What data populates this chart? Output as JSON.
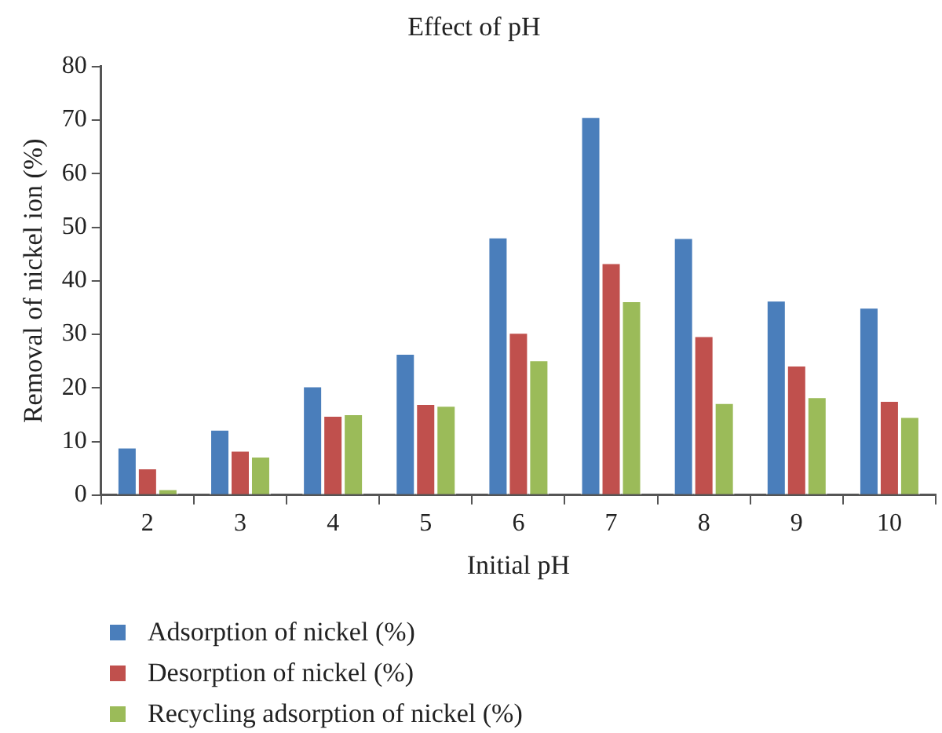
{
  "chart_data": {
    "type": "bar",
    "title": "Effect of pH",
    "xlabel": "Initial pH",
    "ylabel": "Removal of nickel ion (%)",
    "categories": [
      "2",
      "3",
      "4",
      "5",
      "6",
      "7",
      "8",
      "9",
      "10"
    ],
    "series": [
      {
        "name": "Adsorption of nickel (%)",
        "color": "#4a7ebb",
        "values": [
          9.0,
          12.3,
          20.4,
          26.5,
          48.2,
          70.7,
          48.1,
          36.4,
          35.1
        ]
      },
      {
        "name": "Desorption of nickel (%)",
        "color": "#c0504d",
        "values": [
          5.1,
          8.4,
          14.9,
          17.1,
          30.4,
          43.4,
          29.8,
          24.3,
          17.7
        ]
      },
      {
        "name": "Recycling adsorption of nickel (%)",
        "color": "#9bbb59",
        "values": [
          1.2,
          7.3,
          15.2,
          16.8,
          25.3,
          36.3,
          17.3,
          18.4,
          14.7
        ]
      }
    ],
    "ylim": [
      0,
      80
    ],
    "yticks": [
      0,
      10,
      20,
      30,
      40,
      50,
      60,
      70,
      80
    ],
    "grid": false,
    "legend": "bottom left"
  }
}
